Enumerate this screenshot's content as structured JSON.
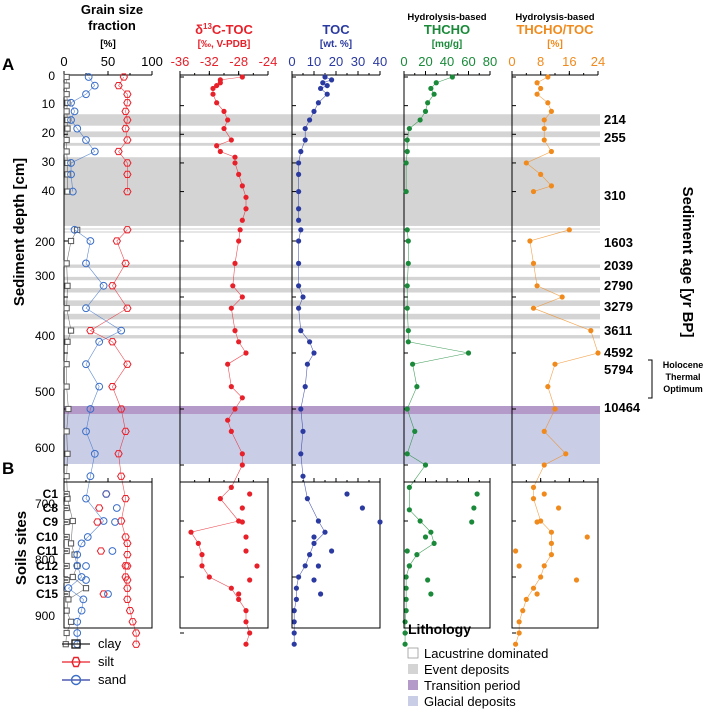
{
  "panel_labels": {
    "a": "A",
    "b": "B"
  },
  "y_axis_title": "Sediment depth [cm]",
  "y2_axis_title": "Sediment age [yr BP]",
  "soils_axis_title": "Soils sites",
  "y_ticks_upper": [
    0,
    10,
    20,
    30,
    40
  ],
  "y_ticks_lower": [
    200,
    300,
    400,
    500,
    600,
    700,
    800,
    900
  ],
  "colors": {
    "grain": "#222222",
    "d13c": "#e8202a",
    "toc": "#2a3aa0",
    "thcho": "#1a8a3a",
    "ratio": "#f08a1c",
    "event": "#d4d4d4",
    "transition": "#b49ac8",
    "glacial": "#c9cde6"
  },
  "chart_data": [
    {
      "type": "scatter",
      "id": "grain",
      "title": "Grain size fraction",
      "xlabel": "[%]",
      "xlim": [
        0,
        100
      ],
      "ticks": [
        0,
        50,
        100
      ],
      "series": [
        {
          "name": "clay",
          "marker": "square",
          "depth": [
            0,
            3,
            6,
            9,
            12,
            15,
            18,
            22,
            26,
            30,
            34,
            40,
            180,
            200,
            240,
            280,
            320,
            360,
            380,
            420,
            460,
            500,
            540,
            580,
            620,
            660,
            700,
            740,
            760,
            780,
            800,
            820,
            840,
            860,
            880,
            900,
            920
          ],
          "values": [
            3,
            3,
            3,
            4,
            3,
            4,
            4,
            3,
            3,
            4,
            4,
            4,
            15,
            8,
            3,
            4,
            3,
            8,
            4,
            3,
            3,
            5,
            3,
            4,
            3,
            4,
            10,
            8,
            12,
            15,
            10,
            25,
            5,
            3,
            8,
            3,
            2
          ]
        },
        {
          "name": "silt",
          "marker": "hexagon",
          "depth": [
            0,
            3,
            6,
            9,
            12,
            15,
            18,
            22,
            26,
            30,
            34,
            40,
            180,
            200,
            240,
            280,
            320,
            360,
            380,
            420,
            460,
            500,
            540,
            580,
            620,
            660,
            700,
            740,
            760,
            780,
            800,
            820,
            840,
            860,
            880,
            900,
            920
          ],
          "values": [
            68,
            62,
            72,
            72,
            70,
            72,
            70,
            72,
            62,
            72,
            72,
            72,
            72,
            60,
            70,
            55,
            72,
            30,
            55,
            72,
            55,
            65,
            70,
            62,
            65,
            70,
            65,
            72,
            72,
            70,
            70,
            72,
            72,
            75,
            78,
            82,
            82
          ]
        },
        {
          "name": "sand",
          "marker": "circle",
          "depth": [
            0,
            3,
            6,
            9,
            12,
            15,
            18,
            22,
            26,
            30,
            34,
            40,
            180,
            200,
            240,
            280,
            320,
            360,
            380,
            420,
            460,
            500,
            540,
            580,
            620,
            660,
            700,
            740,
            760,
            780,
            800,
            820,
            840,
            860,
            880,
            900,
            920
          ],
          "values": [
            28,
            35,
            25,
            8,
            12,
            8,
            15,
            25,
            35,
            8,
            8,
            10,
            12,
            30,
            25,
            45,
            25,
            65,
            40,
            25,
            40,
            30,
            25,
            35,
            30,
            25,
            45,
            20,
            15,
            15,
            20,
            5,
            22,
            20,
            15,
            15,
            15
          ]
        }
      ],
      "soils": {
        "sites": [
          "C1",
          "C8",
          "C9",
          "C10",
          "C11",
          "C12",
          "C13",
          "C15"
        ],
        "clay": [
          3,
          3,
          3,
          3,
          3,
          3,
          3,
          3
        ],
        "silt": [
          48,
          40,
          38,
          70,
          42,
          72,
          72,
          45
        ],
        "sand": [
          48,
          60,
          58,
          27,
          55,
          25,
          25,
          50
        ]
      }
    },
    {
      "type": "scatter",
      "id": "d13c",
      "title": "δ13C-TOC",
      "xlabel": "[‰, V-PDB]",
      "xlim": [
        -36,
        -24
      ],
      "ticks": [
        -36,
        -32,
        -28,
        -24
      ],
      "series": [
        {
          "name": "d13c",
          "depth": [
            0,
            1,
            2,
            3,
            4,
            6,
            9,
            12,
            15,
            18,
            22,
            24,
            26,
            28,
            30,
            34,
            38,
            42,
            46,
            50,
            180,
            200,
            240,
            280,
            300,
            320,
            360,
            380,
            400,
            420,
            460,
            480,
            500,
            520,
            540,
            580,
            600,
            640,
            660,
            700,
            720,
            740,
            760,
            780,
            800,
            820,
            840,
            860,
            880,
            900,
            920
          ],
          "values": [
            -27.5,
            -30.5,
            -30.5,
            -31,
            -31.5,
            -31.5,
            -31,
            -30,
            -29.5,
            -30,
            -29,
            -31,
            -30.5,
            -28.5,
            -28.5,
            -28,
            -27.5,
            -27,
            -27,
            -27.5,
            -27.8,
            -28,
            -28.5,
            -28.8,
            -27.5,
            -29,
            -28.5,
            -28,
            -27,
            -29.5,
            -29,
            -27.5,
            -28.5,
            -29.5,
            -29,
            -27.5,
            -27.5,
            -29,
            -30.5,
            -28,
            -34.5,
            -33.5,
            -33,
            -33,
            -32,
            -29,
            -28,
            -27,
            -27,
            -26.5,
            -27
          ]
        }
      ],
      "soils": {
        "sites": [
          "C1",
          "C8",
          "C9",
          "C10",
          "C11",
          "C12",
          "C13",
          "C15"
        ],
        "values": [
          -26.5,
          -27.5,
          -27.5,
          -27,
          -27,
          -25.5,
          -26.5,
          -28
        ]
      }
    },
    {
      "type": "scatter",
      "id": "toc",
      "title": "TOC",
      "xlabel": "[wt. %]",
      "xlim": [
        0,
        40
      ],
      "ticks": [
        0,
        10,
        20,
        30,
        40
      ],
      "series": [
        {
          "name": "toc",
          "depth": [
            0,
            1,
            2,
            3,
            4,
            6,
            9,
            12,
            15,
            18,
            22,
            26,
            30,
            34,
            40,
            46,
            50,
            180,
            200,
            240,
            280,
            300,
            320,
            360,
            380,
            400,
            420,
            460,
            500,
            540,
            580,
            620,
            660,
            700,
            720,
            740,
            760,
            780,
            800,
            820,
            840,
            860,
            880,
            900,
            920
          ],
          "values": [
            15,
            18,
            14,
            16,
            13,
            16,
            12,
            10,
            8,
            6,
            6,
            4,
            3,
            3,
            3,
            3,
            3,
            4,
            3,
            3,
            3,
            5,
            3,
            4,
            8,
            10,
            7,
            6,
            4,
            5,
            4,
            5,
            7,
            12,
            15,
            10,
            8,
            6,
            3,
            2,
            2,
            1,
            1,
            1,
            1
          ]
        }
      ],
      "soils": {
        "sites": [
          "C1",
          "C8",
          "C9",
          "C10",
          "C11",
          "C12",
          "C13",
          "C15"
        ],
        "values": [
          25,
          32,
          40,
          10,
          18,
          12,
          10,
          13
        ]
      }
    },
    {
      "type": "scatter",
      "id": "thcho",
      "title": "THCHO",
      "subtitle": "Hydrolysis-based",
      "xlabel": "[mg/g]",
      "xlim": [
        0,
        80
      ],
      "ticks": [
        0,
        20,
        40,
        60,
        80
      ],
      "series": [
        {
          "name": "thcho",
          "depth": [
            0,
            2,
            4,
            6,
            9,
            12,
            15,
            18,
            22,
            26,
            30,
            40,
            180,
            200,
            240,
            280,
            320,
            360,
            380,
            400,
            420,
            460,
            500,
            540,
            580,
            600,
            640,
            680,
            700,
            720,
            740,
            760,
            780,
            800,
            820,
            840,
            860,
            880,
            900,
            920
          ],
          "values": [
            45,
            30,
            25,
            28,
            22,
            20,
            15,
            5,
            3,
            3,
            2,
            2,
            3,
            4,
            4,
            3,
            3,
            4,
            4,
            60,
            8,
            12,
            3,
            10,
            3,
            20,
            5,
            5,
            15,
            25,
            28,
            12,
            5,
            2,
            2,
            2,
            2,
            1,
            1,
            1
          ]
        }
      ],
      "soils": {
        "sites": [
          "C1",
          "C8",
          "C9",
          "C10",
          "C11",
          "C12",
          "C13",
          "C15"
        ],
        "values": [
          68,
          65,
          63,
          20,
          3,
          5,
          22,
          25
        ]
      }
    },
    {
      "type": "scatter",
      "id": "ratio",
      "title": "THCHO/TOC",
      "subtitle": "Hydrolysis-based",
      "xlabel": "[%]",
      "xlim": [
        0,
        24
      ],
      "ticks": [
        0,
        8,
        16,
        24
      ],
      "series": [
        {
          "name": "ratio",
          "depth": [
            0,
            2,
            4,
            6,
            9,
            12,
            15,
            18,
            22,
            26,
            30,
            34,
            38,
            40,
            180,
            200,
            240,
            280,
            300,
            320,
            360,
            400,
            420,
            460,
            500,
            540,
            580,
            600,
            640,
            660,
            700,
            720,
            740,
            760,
            780,
            800,
            820,
            840,
            860,
            880,
            900,
            920
          ],
          "values": [
            10,
            7,
            8,
            7,
            10,
            11,
            9,
            9,
            9,
            11,
            4,
            8,
            11,
            6,
            16,
            5,
            6,
            7,
            14,
            6,
            22,
            24,
            12,
            10,
            12,
            9,
            15,
            9,
            6,
            6,
            8,
            11,
            11,
            11,
            9,
            8,
            6,
            4,
            3,
            2,
            2,
            1
          ]
        }
      ],
      "soils": {
        "sites": [
          "C1",
          "C8",
          "C9",
          "C10",
          "C11",
          "C12",
          "C13",
          "C15"
        ],
        "values": [
          9,
          13,
          7,
          21,
          1,
          2,
          18,
          7
        ]
      }
    }
  ],
  "age_labels": [
    "214",
    "255",
    "310",
    "1603",
    "2039",
    "2790",
    "3279",
    "3611",
    "4592",
    "5794",
    "10464"
  ],
  "holocene_label": [
    "Holocene",
    "Thermal",
    "Optimum"
  ],
  "legend_grain": [
    "clay",
    "silt",
    "sand"
  ],
  "lithology": {
    "title": "Lithology",
    "items": [
      "Lacustrine dominated",
      "Event deposits",
      "Transition period",
      "Glacial deposits"
    ]
  }
}
